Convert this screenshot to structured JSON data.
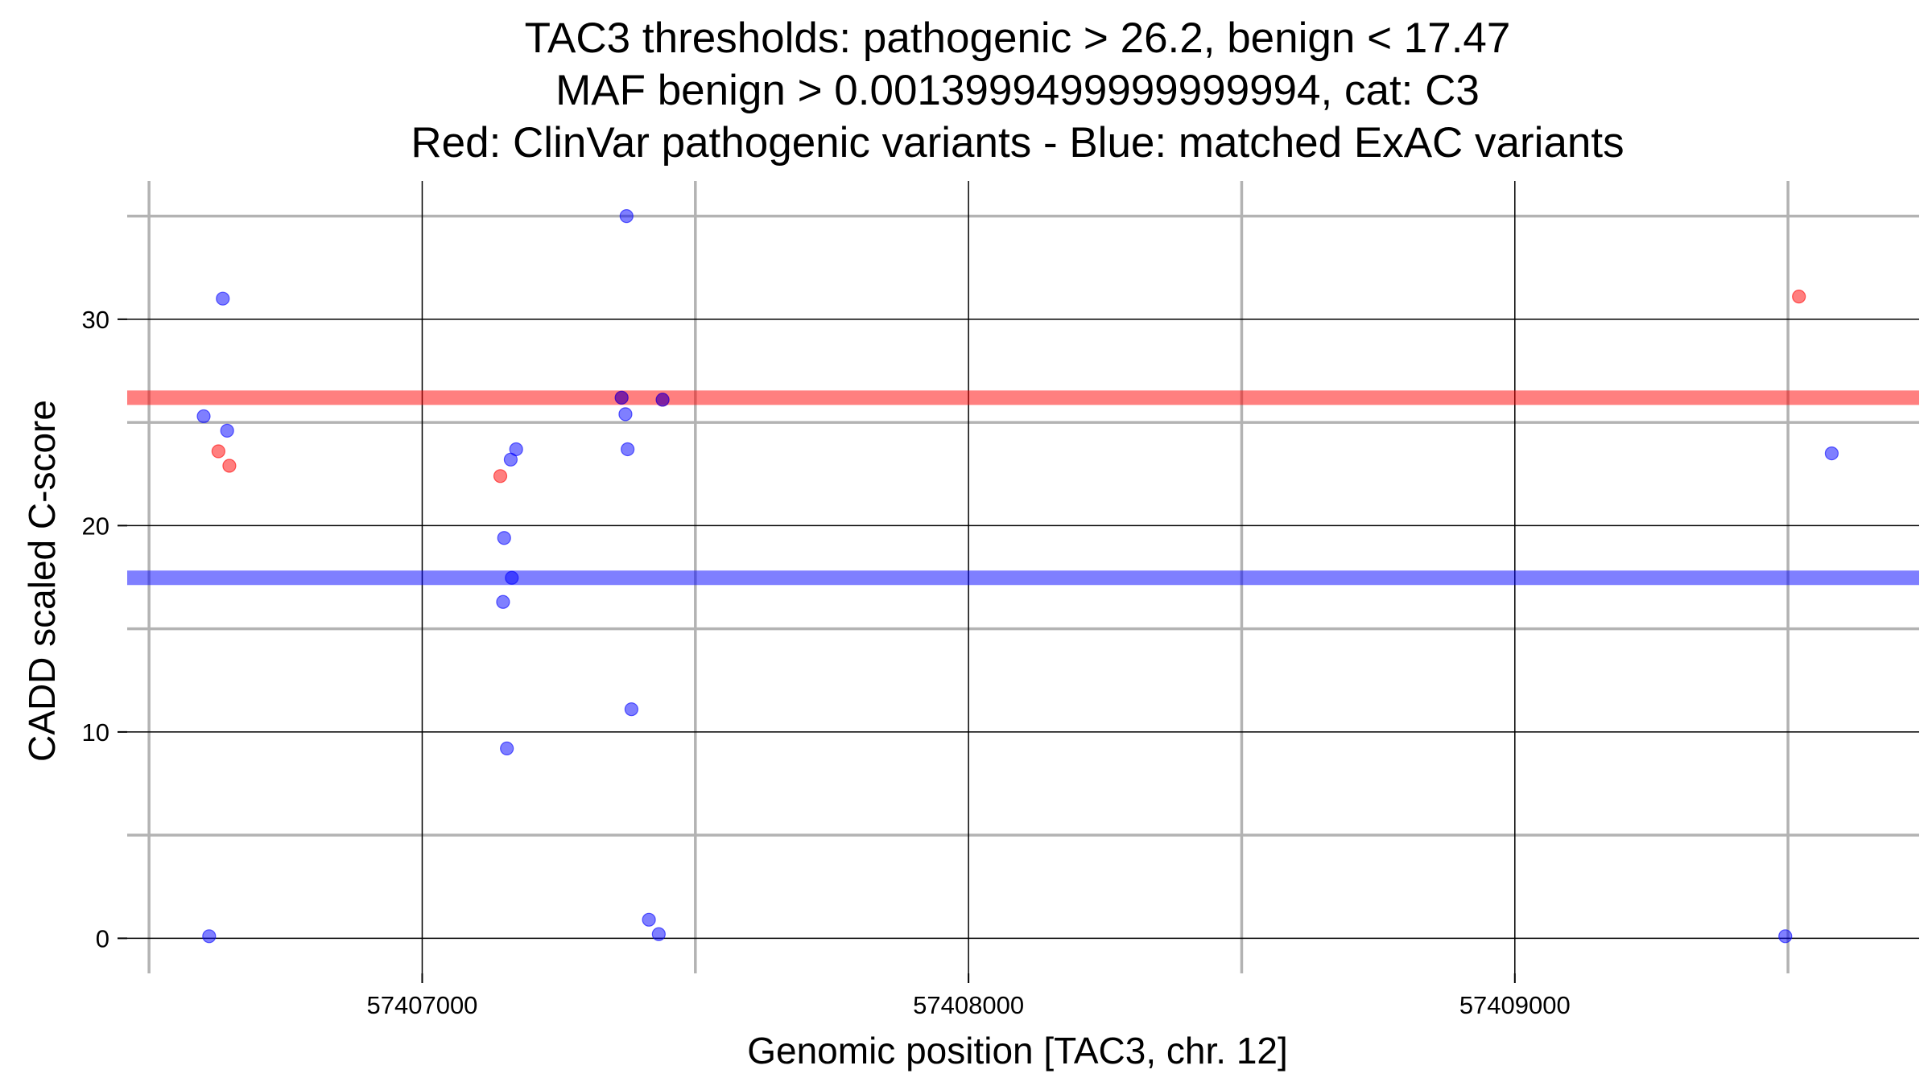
{
  "chart_data": {
    "type": "scatter",
    "title_lines": [
      "TAC3 thresholds: pathogenic > 26.2, benign < 17.47",
      "MAF benign > 0.0013999499999999994, cat: C3",
      "Red: ClinVar pathogenic variants - Blue: matched ExAC variants"
    ],
    "xlabel": "Genomic position [TAC3, chr. 12]",
    "ylabel": "CADD scaled C-score",
    "xlim": [
      57406460,
      57409740
    ],
    "ylim": [
      -1.7,
      36.7
    ],
    "x_ticks": [
      57407000,
      57408000,
      57409000
    ],
    "x_tick_labels": [
      "57407000",
      "57408000",
      "57409000"
    ],
    "x_minor_ticks": [
      57406500,
      57407500,
      57408500,
      57409500
    ],
    "y_ticks": [
      0,
      10,
      20,
      30
    ],
    "y_tick_labels": [
      "0",
      "10",
      "20",
      "30"
    ],
    "y_minor_ticks": [
      5,
      15,
      25,
      35
    ],
    "grid": true,
    "thresholds": [
      {
        "name": "pathogenic",
        "value": 26.2,
        "color": "#ff0000"
      },
      {
        "name": "benign",
        "value": 17.47,
        "color": "#0000ff"
      }
    ],
    "series": [
      {
        "color": "#ff0000",
        "points": [
          {
            "x": 57406627,
            "y": 23.6
          },
          {
            "x": 57406647,
            "y": 22.9
          },
          {
            "x": 57407143,
            "y": 22.4
          },
          {
            "x": 57407365,
            "y": 26.2
          },
          {
            "x": 57407440,
            "y": 26.1
          },
          {
            "x": 57409520,
            "y": 31.1
          }
        ]
      },
      {
        "color": "#0000ff",
        "points": [
          {
            "x": 57406600,
            "y": 25.3
          },
          {
            "x": 57406610,
            "y": 0.1
          },
          {
            "x": 57406635,
            "y": 31.0
          },
          {
            "x": 57406643,
            "y": 24.6
          },
          {
            "x": 57407148,
            "y": 16.3
          },
          {
            "x": 57407150,
            "y": 19.4
          },
          {
            "x": 57407155,
            "y": 9.2
          },
          {
            "x": 57407162,
            "y": 23.2
          },
          {
            "x": 57407164,
            "y": 17.47
          },
          {
            "x": 57407172,
            "y": 23.7
          },
          {
            "x": 57407365,
            "y": 26.2
          },
          {
            "x": 57407372,
            "y": 25.4
          },
          {
            "x": 57407374,
            "y": 35.0
          },
          {
            "x": 57407376,
            "y": 23.7
          },
          {
            "x": 57407383,
            "y": 11.1
          },
          {
            "x": 57407415,
            "y": 0.9
          },
          {
            "x": 57407433,
            "y": 0.2
          },
          {
            "x": 57407440,
            "y": 26.1
          },
          {
            "x": 57409495,
            "y": 0.1
          },
          {
            "x": 57409580,
            "y": 23.5
          }
        ]
      }
    ]
  }
}
